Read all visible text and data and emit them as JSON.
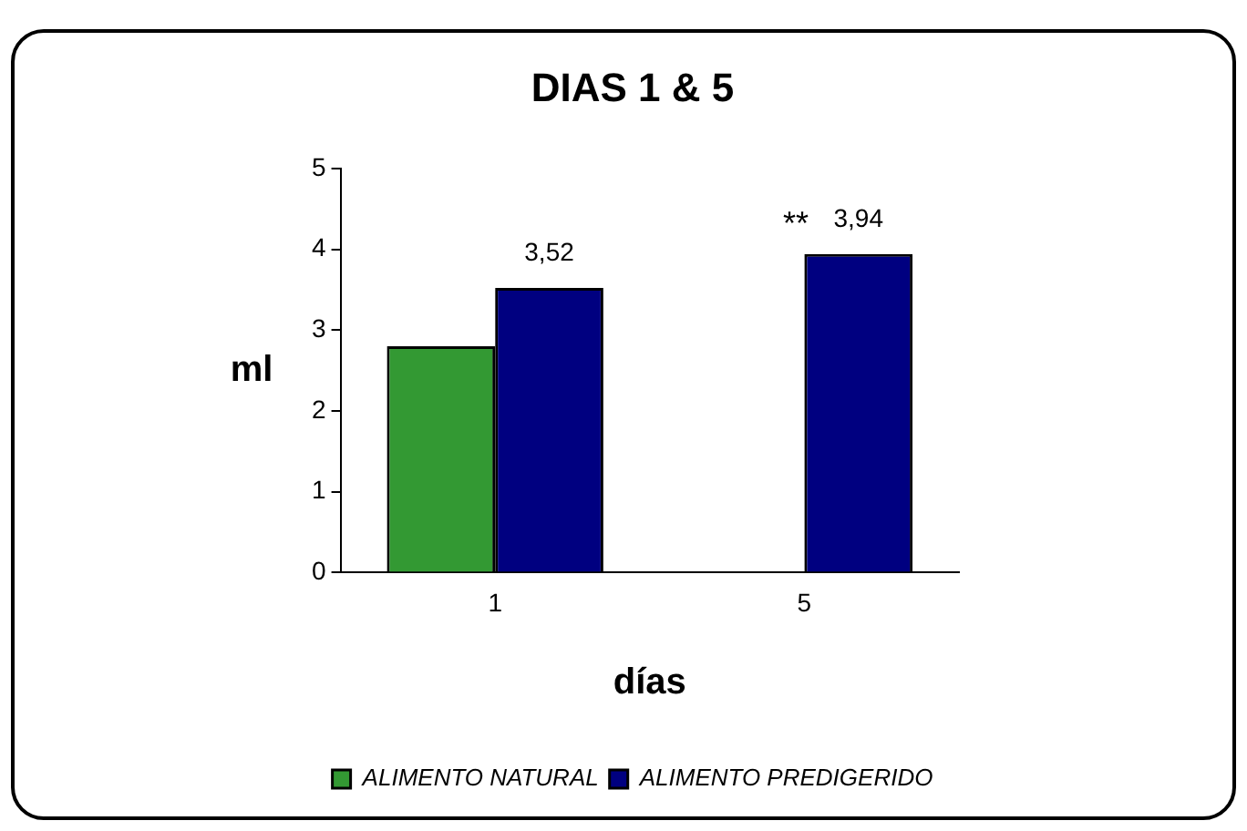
{
  "chart_data": {
    "type": "bar",
    "title": "DIAS 1 & 5",
    "xlabel": "días",
    "ylabel": "ml",
    "categories": [
      "1",
      "5"
    ],
    "series": [
      {
        "name": "ALIMENTO NATURAL",
        "color": "#339933",
        "values": [
          2.8,
          0
        ],
        "value_labels": [
          null,
          null
        ]
      },
      {
        "name": "ALIMENTO PREDIGERIDO",
        "color": "#000080",
        "values": [
          3.52,
          3.94
        ],
        "value_labels": [
          "3,52",
          "3,94"
        ]
      }
    ],
    "annotations": [
      "**"
    ],
    "ylim": [
      0,
      5
    ],
    "yticks": [
      0,
      1,
      2,
      3,
      4,
      5
    ],
    "grid": false,
    "legend": "bottom"
  }
}
